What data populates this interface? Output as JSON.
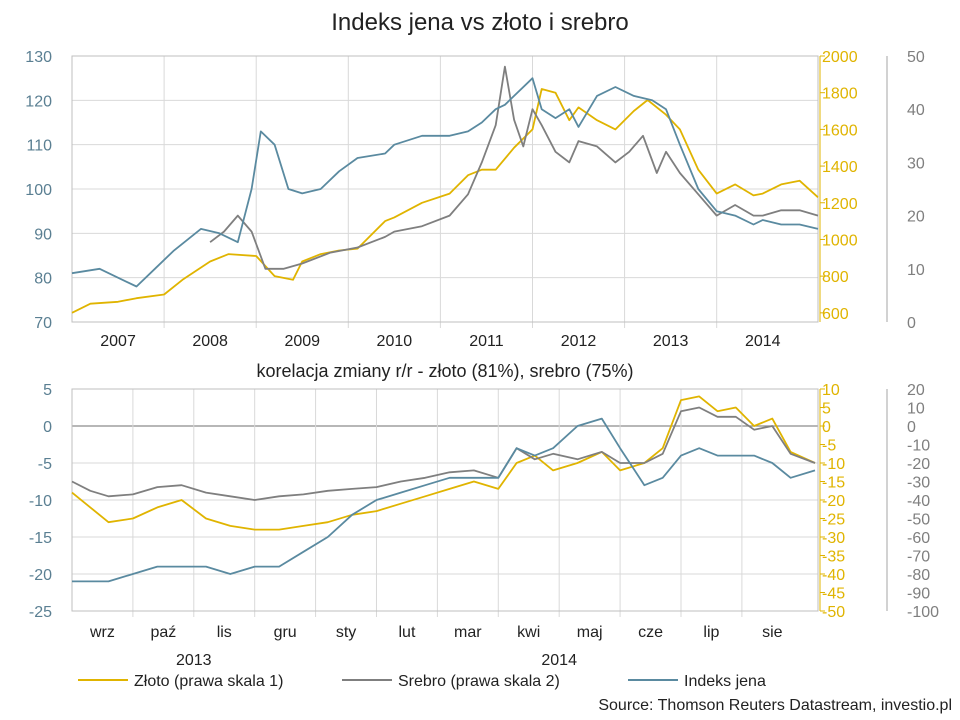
{
  "colors": {
    "gold": "#e0b400",
    "silver": "#7f7f7f",
    "yen": "#5a8aa0",
    "axis_left": "#5a7f92",
    "grid": "#d9d9d9"
  },
  "chart_data": [
    {
      "type": "line",
      "title": "Indeks jena vs złoto i srebro",
      "x_tick_labels": [
        "2007",
        "2008",
        "2009",
        "2010",
        "2011",
        "2012",
        "2013",
        "2014"
      ],
      "x_tick_positions": [
        2007.0,
        2008.0,
        2009.0,
        2010.0,
        2011.0,
        2012.0,
        2013.0,
        2014.0
      ],
      "xlim": [
        2006.5,
        2014.6
      ],
      "axes": {
        "left": {
          "range": [
            70,
            130
          ],
          "ticks": [
            70,
            80,
            90,
            100,
            110,
            120,
            130
          ]
        },
        "right1": {
          "range": [
            550,
            2000
          ],
          "ticks": [
            600,
            800,
            1000,
            1200,
            1400,
            1600,
            1800,
            2000
          ]
        },
        "right2": {
          "range": [
            0,
            50
          ],
          "ticks": [
            0,
            10,
            20,
            30,
            40,
            50
          ]
        }
      },
      "grid": true,
      "series": [
        {
          "name": "Złoto (prawa skala 1)",
          "axis": "right1",
          "color": "#e0b400",
          "x": [
            2006.5,
            2006.7,
            2007.0,
            2007.2,
            2007.5,
            2007.7,
            2008.0,
            2008.2,
            2008.5,
            2008.7,
            2008.9,
            2009.0,
            2009.2,
            2009.4,
            2009.6,
            2009.9,
            2010.0,
            2010.3,
            2010.6,
            2010.8,
            2010.95,
            2011.1,
            2011.3,
            2011.5,
            2011.6,
            2011.75,
            2011.9,
            2012.0,
            2012.2,
            2012.4,
            2012.6,
            2012.75,
            2012.95,
            2013.1,
            2013.3,
            2013.5,
            2013.7,
            2013.9,
            2014.0,
            2014.2,
            2014.4,
            2014.6
          ],
          "y": [
            600,
            650,
            660,
            680,
            700,
            780,
            880,
            920,
            910,
            800,
            780,
            880,
            920,
            940,
            950,
            1100,
            1120,
            1200,
            1250,
            1350,
            1380,
            1380,
            1500,
            1600,
            1820,
            1800,
            1650,
            1720,
            1650,
            1600,
            1700,
            1760,
            1680,
            1600,
            1380,
            1250,
            1300,
            1240,
            1250,
            1300,
            1320,
            1230
          ]
        },
        {
          "name": "Srebro (prawa skala 2)",
          "axis": "right2",
          "color": "#7f7f7f",
          "x": [
            2008.0,
            2008.15,
            2008.3,
            2008.45,
            2008.6,
            2008.8,
            2009.0,
            2009.3,
            2009.6,
            2009.9,
            2010.0,
            2010.3,
            2010.6,
            2010.8,
            2010.95,
            2011.1,
            2011.2,
            2011.3,
            2011.4,
            2011.5,
            2011.6,
            2011.75,
            2011.9,
            2012.0,
            2012.2,
            2012.4,
            2012.55,
            2012.7,
            2012.85,
            2012.95,
            2013.1,
            2013.3,
            2013.5,
            2013.7,
            2013.9,
            2014.0,
            2014.2,
            2014.4,
            2014.6
          ],
          "y": [
            15,
            17,
            20,
            17,
            10,
            10,
            11,
            13,
            14,
            16,
            17,
            18,
            20,
            24,
            30,
            37,
            48,
            38,
            33,
            40,
            37,
            32,
            30,
            34,
            33,
            30,
            32,
            35,
            28,
            32,
            28,
            24,
            20,
            22,
            20,
            20,
            21,
            21,
            20
          ]
        },
        {
          "name": "Indeks jena",
          "axis": "left",
          "color": "#5a8aa0",
          "x": [
            2006.5,
            2006.8,
            2007.0,
            2007.2,
            2007.4,
            2007.6,
            2007.9,
            2008.1,
            2008.3,
            2008.45,
            2008.55,
            2008.7,
            2008.85,
            2009.0,
            2009.2,
            2009.4,
            2009.6,
            2009.9,
            2010.0,
            2010.3,
            2010.6,
            2010.8,
            2010.95,
            2011.1,
            2011.2,
            2011.3,
            2011.5,
            2011.6,
            2011.75,
            2011.9,
            2012.0,
            2012.2,
            2012.4,
            2012.6,
            2012.8,
            2012.95,
            2013.1,
            2013.3,
            2013.5,
            2013.7,
            2013.9,
            2014.0,
            2014.2,
            2014.4,
            2014.6
          ],
          "y": [
            81,
            82,
            80,
            78,
            82,
            86,
            91,
            90,
            88,
            100,
            113,
            110,
            100,
            99,
            100,
            104,
            107,
            108,
            110,
            112,
            112,
            113,
            115,
            118,
            119,
            121,
            125,
            118,
            116,
            118,
            114,
            121,
            123,
            121,
            120,
            118,
            110,
            100,
            95,
            94,
            92,
            93,
            92,
            92,
            91
          ]
        }
      ]
    },
    {
      "type": "line",
      "subtitle": "korelacja zmiany r/r - złoto (81%), srebro (75%)",
      "x_tick_labels": [
        "wrz",
        "paź",
        "lis",
        "gru",
        "sty",
        "lut",
        "mar",
        "kwi",
        "maj",
        "cze",
        "lip",
        "sie"
      ],
      "x_tick_positions": [
        0.5,
        1.5,
        2.5,
        3.5,
        4.5,
        5.5,
        6.5,
        7.5,
        8.5,
        9.5,
        10.5,
        11.5
      ],
      "x_group_labels": [
        "2013",
        "2014"
      ],
      "x_group_positions": [
        2.0,
        8.0
      ],
      "xlim": [
        0,
        12.25
      ],
      "axes": {
        "left": {
          "range": [
            -25,
            5
          ],
          "ticks": [
            5,
            0,
            -5,
            -10,
            -15,
            -20,
            -25
          ]
        },
        "right1": {
          "range": [
            -50,
            10
          ],
          "ticks": [
            10,
            5,
            0,
            -5,
            -10,
            -15,
            -20,
            -25,
            -30,
            -35,
            -40,
            -45,
            -50
          ]
        },
        "right2": {
          "range": [
            -100,
            20
          ],
          "ticks": [
            20,
            10,
            0,
            -10,
            -20,
            -30,
            -40,
            -50,
            -60,
            -70,
            -80,
            -90,
            -100
          ]
        }
      },
      "grid": true,
      "series": [
        {
          "name": "Złoto (prawa skala 1)",
          "axis": "right1",
          "color": "#e0b400",
          "x": [
            0.0,
            0.3,
            0.6,
            1.0,
            1.4,
            1.8,
            2.2,
            2.6,
            3.0,
            3.4,
            3.8,
            4.2,
            4.6,
            5.0,
            5.4,
            5.8,
            6.2,
            6.6,
            7.0,
            7.3,
            7.6,
            7.9,
            8.3,
            8.7,
            9.0,
            9.4,
            9.7,
            10.0,
            10.3,
            10.6,
            10.9,
            11.2,
            11.5,
            11.8,
            12.2
          ],
          "y": [
            -18,
            -22,
            -26,
            -25,
            -22,
            -20,
            -25,
            -27,
            -28,
            -28,
            -27,
            -26,
            -24,
            -23,
            -21,
            -19,
            -17,
            -15,
            -17,
            -10,
            -8,
            -12,
            -10,
            -7,
            -12,
            -10,
            -6,
            7,
            8,
            4,
            5,
            0,
            2,
            -7,
            -10
          ]
        },
        {
          "name": "Srebro (prawa skala 2)",
          "axis": "right2",
          "color": "#7f7f7f",
          "x": [
            0.0,
            0.3,
            0.6,
            1.0,
            1.4,
            1.8,
            2.2,
            2.6,
            3.0,
            3.4,
            3.8,
            4.2,
            4.6,
            5.0,
            5.4,
            5.8,
            6.2,
            6.6,
            7.0,
            7.3,
            7.6,
            7.9,
            8.3,
            8.7,
            9.0,
            9.4,
            9.7,
            10.0,
            10.3,
            10.6,
            10.9,
            11.2,
            11.5,
            11.8,
            12.2
          ],
          "y": [
            -30,
            -35,
            -38,
            -37,
            -33,
            -32,
            -36,
            -38,
            -40,
            -38,
            -37,
            -35,
            -34,
            -33,
            -30,
            -28,
            -25,
            -24,
            -28,
            -12,
            -18,
            -15,
            -18,
            -14,
            -20,
            -20,
            -15,
            8,
            10,
            5,
            5,
            -2,
            0,
            -15,
            -20
          ]
        },
        {
          "name": "Indeks jena",
          "axis": "left",
          "color": "#5a8aa0",
          "x": [
            0.0,
            0.3,
            0.6,
            1.0,
            1.4,
            1.8,
            2.2,
            2.6,
            3.0,
            3.4,
            3.8,
            4.2,
            4.6,
            5.0,
            5.4,
            5.8,
            6.2,
            6.6,
            7.0,
            7.3,
            7.6,
            7.9,
            8.3,
            8.7,
            9.0,
            9.4,
            9.7,
            10.0,
            10.3,
            10.6,
            10.9,
            11.2,
            11.5,
            11.8,
            12.2
          ],
          "y": [
            -21,
            -21,
            -21,
            -20,
            -19,
            -19,
            -19,
            -20,
            -19,
            -19,
            -17,
            -15,
            -12,
            -10,
            -9,
            -8,
            -7,
            -7,
            -7,
            -3,
            -4,
            -3,
            0,
            1,
            -3,
            -8,
            -7,
            -4,
            -3,
            -4,
            -4,
            -4,
            -5,
            -7,
            -6
          ]
        }
      ]
    }
  ],
  "legend": [
    {
      "label": "Złoto (prawa skala 1)",
      "color": "#e0b400"
    },
    {
      "label": "Srebro (prawa skala 2)",
      "color": "#7f7f7f"
    },
    {
      "label": "Indeks jena",
      "color": "#5a8aa0"
    }
  ],
  "source": "Source: Thomson Reuters Datastream, investio.pl"
}
